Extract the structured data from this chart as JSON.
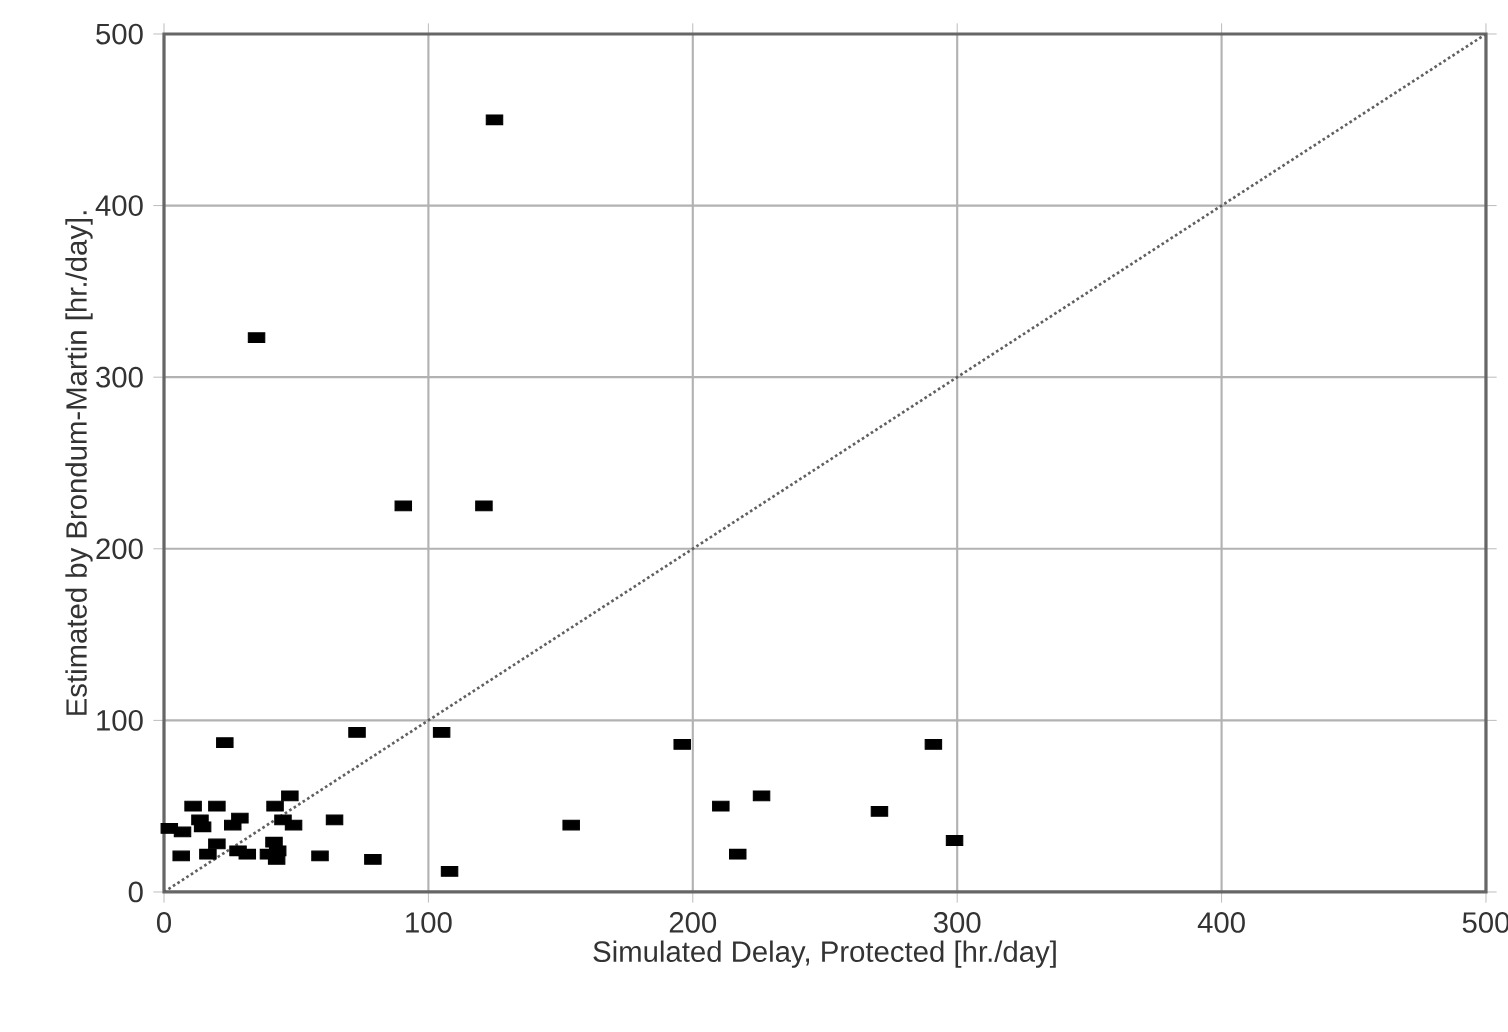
{
  "chart_data": {
    "type": "scatter",
    "xlabel": "Simulated Delay, Protected [hr./day]",
    "ylabel": "Estimated by Brondum-Martin [hr./day].",
    "xlim": [
      0,
      500
    ],
    "ylim": [
      0,
      500
    ],
    "xticks": [
      0,
      100,
      200,
      300,
      400,
      500
    ],
    "yticks": [
      0,
      100,
      200,
      300,
      400,
      500
    ],
    "grid": true,
    "marker": "square",
    "series": [
      {
        "color": "#000000",
        "x": [
          125,
          35,
          90.5,
          121,
          23,
          73,
          105,
          108,
          79,
          59,
          64.5,
          47.6,
          42,
          45,
          49,
          41.6,
          43,
          39.5,
          42.6,
          31.5,
          28,
          20,
          16.6,
          6.5,
          2,
          7,
          13.6,
          14.6,
          11,
          20,
          24.4,
          28.7,
          26,
          196,
          154,
          210.6,
          226,
          217,
          270.6,
          291,
          299
        ],
        "values": [
          450,
          323,
          225,
          225,
          87,
          93,
          93,
          12,
          19,
          21,
          42,
          56,
          50,
          42,
          39,
          29,
          24,
          22,
          19,
          22,
          24,
          28,
          22,
          21,
          37,
          35,
          42,
          38,
          50,
          50,
          null,
          43,
          39,
          86,
          39,
          50,
          56,
          22,
          47,
          86,
          30
        ]
      },
      {
        "type": "line",
        "color": "#606060",
        "line_style": "dotted",
        "marker": "none",
        "x": [
          0,
          500
        ],
        "values": [
          0,
          500
        ]
      }
    ]
  }
}
